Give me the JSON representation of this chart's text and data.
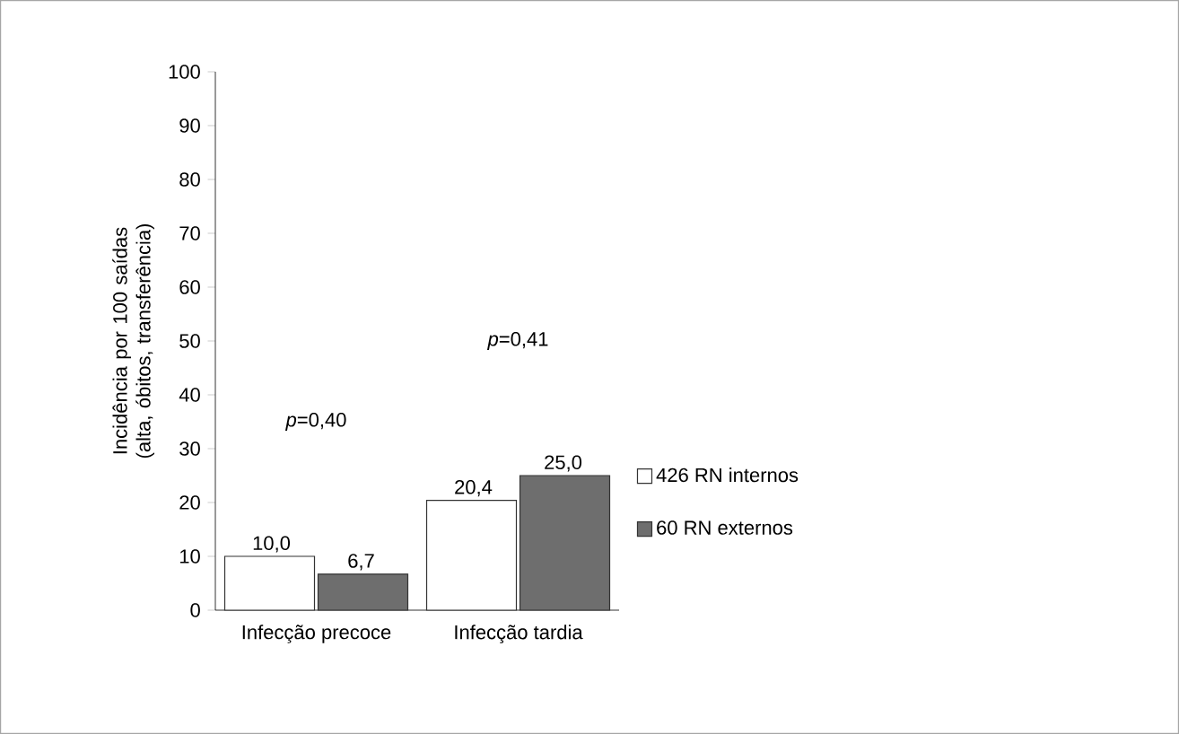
{
  "chart_data": {
    "type": "bar",
    "categories": [
      "Infecção precoce",
      "Infecção tardia"
    ],
    "ylabel": "Incidência por 100 saídas (alta, óbitos, transferência)",
    "series": [
      {
        "name": "426 RN internos",
        "color": "#ffffff",
        "values": [
          10.0,
          20.4
        ],
        "value_labels": [
          "10,0",
          "20,4"
        ]
      },
      {
        "name": "60 RN externos",
        "color": "#6e6e6e",
        "values": [
          6.7,
          25.0
        ],
        "value_labels": [
          "6,7",
          "25,0"
        ]
      }
    ],
    "annotations": [
      "*p*=0,40",
      "*p*=0,41"
    ],
    "ylim": [
      0,
      100
    ],
    "yticks": [
      0,
      10,
      20,
      30,
      40,
      50,
      60,
      70,
      80,
      90,
      100
    ],
    "legend": "right",
    "grid": false
  }
}
